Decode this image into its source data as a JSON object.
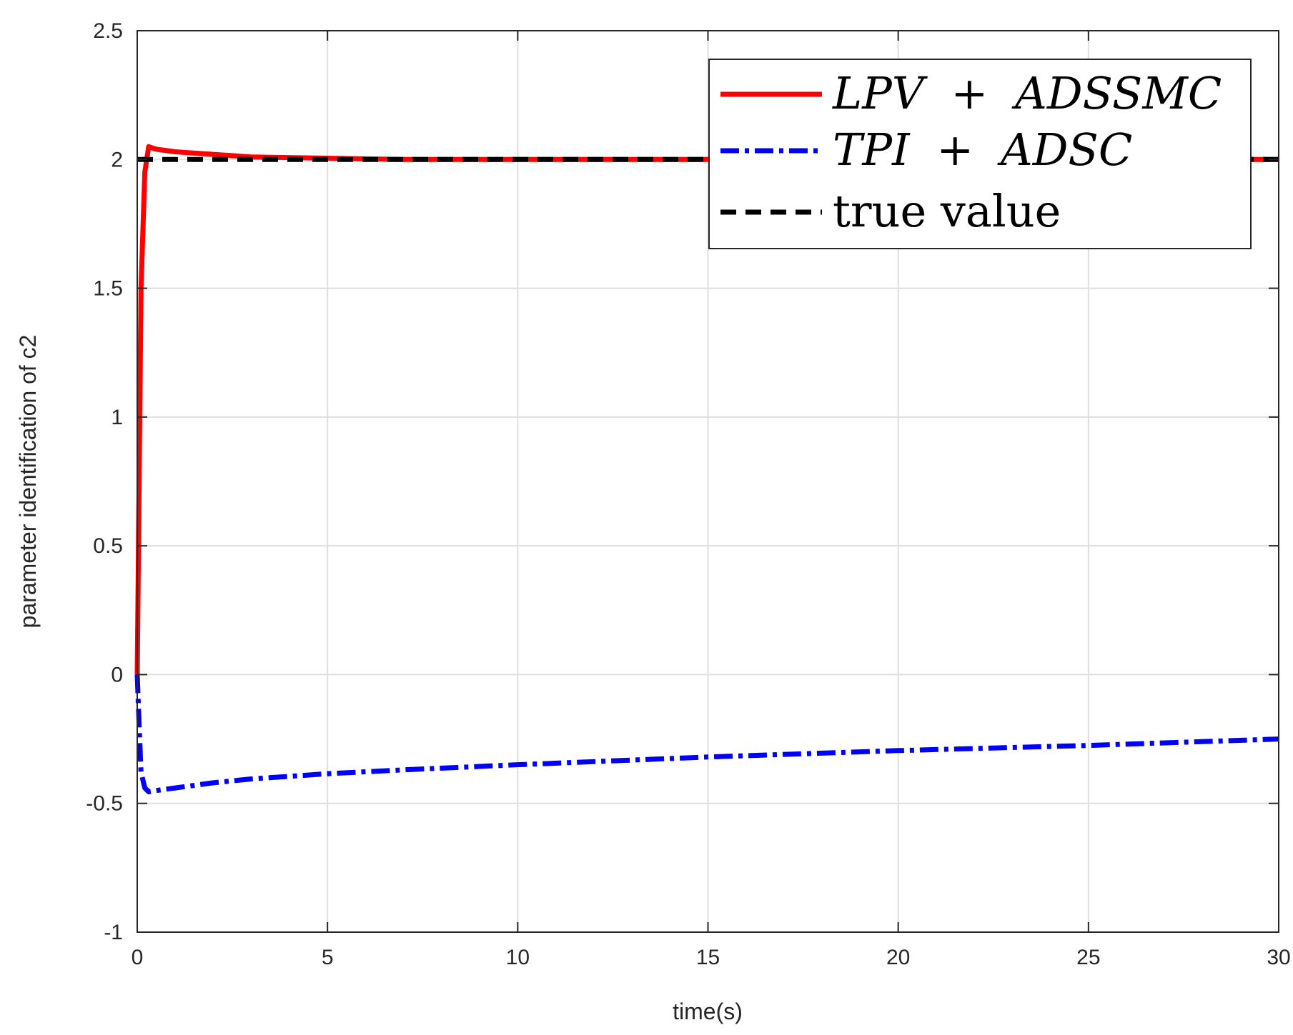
{
  "chart_data": {
    "type": "line",
    "xlabel": "time(s)",
    "ylabel": "parameter identification of c2",
    "xlim": [
      0,
      30
    ],
    "ylim": [
      -1,
      2.5
    ],
    "x_ticks": [
      0,
      5,
      10,
      15,
      20,
      25,
      30
    ],
    "y_ticks": [
      -1,
      -0.5,
      0,
      0.5,
      1,
      1.5,
      2,
      2.5
    ],
    "x_tick_labels": [
      "0",
      "5",
      "10",
      "15",
      "20",
      "25",
      "30"
    ],
    "y_tick_labels": [
      "-1",
      "-0.5",
      "0",
      "0.5",
      "1",
      "1.5",
      "2",
      "2.5"
    ],
    "grid": true,
    "legend_position": "top-right",
    "series": [
      {
        "name": "LPV + ADSSMC",
        "color": "#ff0000",
        "line_style": "solid",
        "x": [
          0,
          0.1,
          0.2,
          0.3,
          0.5,
          1,
          2,
          3,
          5,
          7,
          10,
          15,
          20,
          25,
          30
        ],
        "y": [
          0,
          1.5,
          1.95,
          2.05,
          2.04,
          2.03,
          2.02,
          2.01,
          2.005,
          2.0,
          2.0,
          2.0,
          2.0,
          2.0,
          2.0
        ]
      },
      {
        "name": "TPI + ADSC",
        "color": "#0000ff",
        "line_style": "dashdot",
        "x": [
          0,
          0.05,
          0.1,
          0.2,
          0.3,
          0.5,
          1,
          2,
          3,
          5,
          7,
          10,
          15,
          20,
          25,
          30
        ],
        "y": [
          0,
          -0.2,
          -0.38,
          -0.44,
          -0.455,
          -0.45,
          -0.44,
          -0.42,
          -0.405,
          -0.385,
          -0.37,
          -0.35,
          -0.32,
          -0.295,
          -0.275,
          -0.25
        ]
      },
      {
        "name": "true value",
        "color": "#000000",
        "line_style": "dashed",
        "x": [
          0,
          30
        ],
        "y": [
          2,
          2
        ]
      }
    ],
    "legend": [
      {
        "math": [
          "LPV",
          "+",
          "ADSSMC"
        ]
      },
      {
        "math": [
          "TPI",
          "+",
          "ADSC"
        ]
      },
      {
        "text": "true value"
      }
    ]
  }
}
